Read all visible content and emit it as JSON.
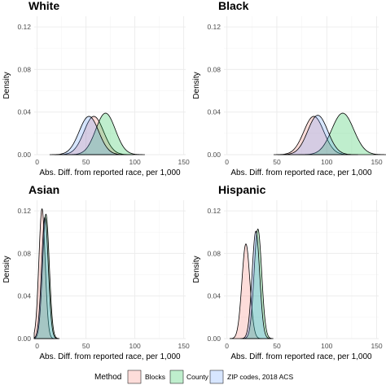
{
  "chart_data": {
    "type": "area",
    "x_label": "Abs. Diff. from reported race, per 1,000",
    "y_label": "Density",
    "xlim": [
      -3,
      152
    ],
    "ylim": [
      0,
      0.13
    ],
    "x_ticks": [
      0,
      50,
      100,
      150
    ],
    "y_ticks": [
      0.0,
      0.04,
      0.08,
      0.12
    ],
    "y_tick_labels": [
      "0.00",
      "0.04",
      "0.08",
      "0.12"
    ],
    "grid": true,
    "legend": {
      "title": "Method",
      "position": "bottom",
      "entries": [
        "Blocks",
        "County",
        "ZIP codes, 2018 ACS"
      ]
    },
    "colors": {
      "Blocks": "#f8766d",
      "County": "#00ba38",
      "ZIP codes, 2018 ACS": "#619cff"
    },
    "panels": [
      {
        "title": "White",
        "series": [
          {
            "name": "Blocks",
            "mean": 58,
            "sd": 10,
            "peak": 0.036
          },
          {
            "name": "County",
            "mean": 70,
            "sd": 10,
            "peak": 0.039
          },
          {
            "name": "ZIP codes, 2018 ACS",
            "mean": 53,
            "sd": 10,
            "peak": 0.036
          }
        ]
      },
      {
        "title": "Black",
        "series": [
          {
            "name": "Blocks",
            "mean": 87,
            "sd": 10,
            "peak": 0.036
          },
          {
            "name": "County",
            "mean": 116,
            "sd": 11,
            "peak": 0.039
          },
          {
            "name": "ZIP codes, 2018 ACS",
            "mean": 91,
            "sd": 10,
            "peak": 0.037
          }
        ]
      },
      {
        "title": "Asian",
        "series": [
          {
            "name": "Blocks",
            "mean": 5,
            "sd": 3.2,
            "peak": 0.122
          },
          {
            "name": "County",
            "mean": 9,
            "sd": 3.4,
            "peak": 0.117
          },
          {
            "name": "ZIP codes, 2018 ACS",
            "mean": 8,
            "sd": 3.4,
            "peak": 0.114
          }
        ]
      },
      {
        "title": "Hispanic",
        "series": [
          {
            "name": "Blocks",
            "mean": 19,
            "sd": 4,
            "peak": 0.089
          },
          {
            "name": "County",
            "mean": 31,
            "sd": 3.8,
            "peak": 0.103
          },
          {
            "name": "ZIP codes, 2018 ACS",
            "mean": 29,
            "sd": 3.8,
            "peak": 0.101
          }
        ]
      }
    ]
  }
}
